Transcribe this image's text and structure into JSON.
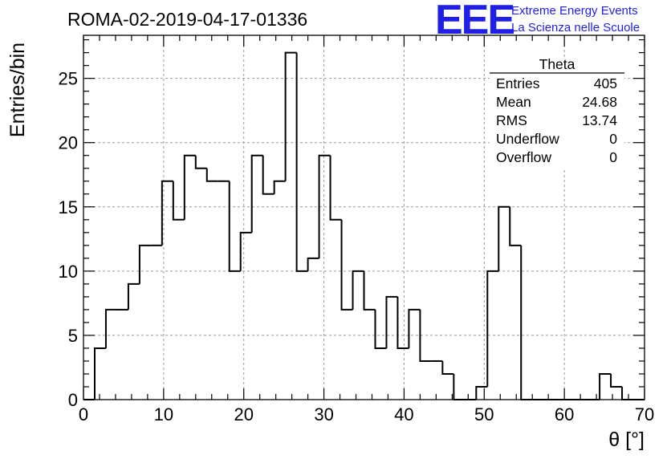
{
  "header": {
    "run_title": "ROMA-02-2019-04-17-01336",
    "logo": "EEE",
    "logo_line1": "Extreme Energy Events",
    "logo_line2": "La Scienza nelle Scuole"
  },
  "stats_box": {
    "title": "Theta",
    "rows": [
      {
        "label": "Entries",
        "value": "405"
      },
      {
        "label": "Mean",
        "value": "24.68"
      },
      {
        "label": "RMS",
        "value": "13.74"
      },
      {
        "label": "Underflow",
        "value": "0"
      },
      {
        "label": "Overflow",
        "value": "0"
      }
    ]
  },
  "chart_data": {
    "type": "bar",
    "style": "step-histogram",
    "title": "ROMA-02-2019-04-17-01336",
    "xlabel": "θ [°]",
    "ylabel": "Entries/bin",
    "xlim": [
      0,
      70
    ],
    "ylim": [
      0,
      28.35
    ],
    "grid": true,
    "bin_width": 1.4,
    "bin_start": 0,
    "values": [
      0,
      4,
      7,
      7,
      9,
      12,
      12,
      17,
      14,
      19,
      18,
      17,
      17,
      10,
      13,
      19,
      16,
      17,
      27,
      10,
      11,
      19,
      14,
      7,
      10,
      7,
      4,
      8,
      4,
      7,
      3,
      3,
      2,
      0,
      0,
      1,
      10,
      15,
      12,
      0,
      0,
      0,
      0,
      0,
      0,
      0,
      2,
      1,
      0,
      0
    ],
    "x_ticks": [
      "0",
      "10",
      "20",
      "30",
      "40",
      "50",
      "60",
      "70"
    ],
    "y_ticks": [
      "0",
      "5",
      "10",
      "15",
      "20",
      "25"
    ],
    "x_tick_values": [
      0,
      10,
      20,
      30,
      40,
      50,
      60,
      70
    ],
    "y_tick_values": [
      0,
      5,
      10,
      15,
      20,
      25
    ],
    "line_color": "#000000",
    "grid_color": "#9a9a9a"
  }
}
